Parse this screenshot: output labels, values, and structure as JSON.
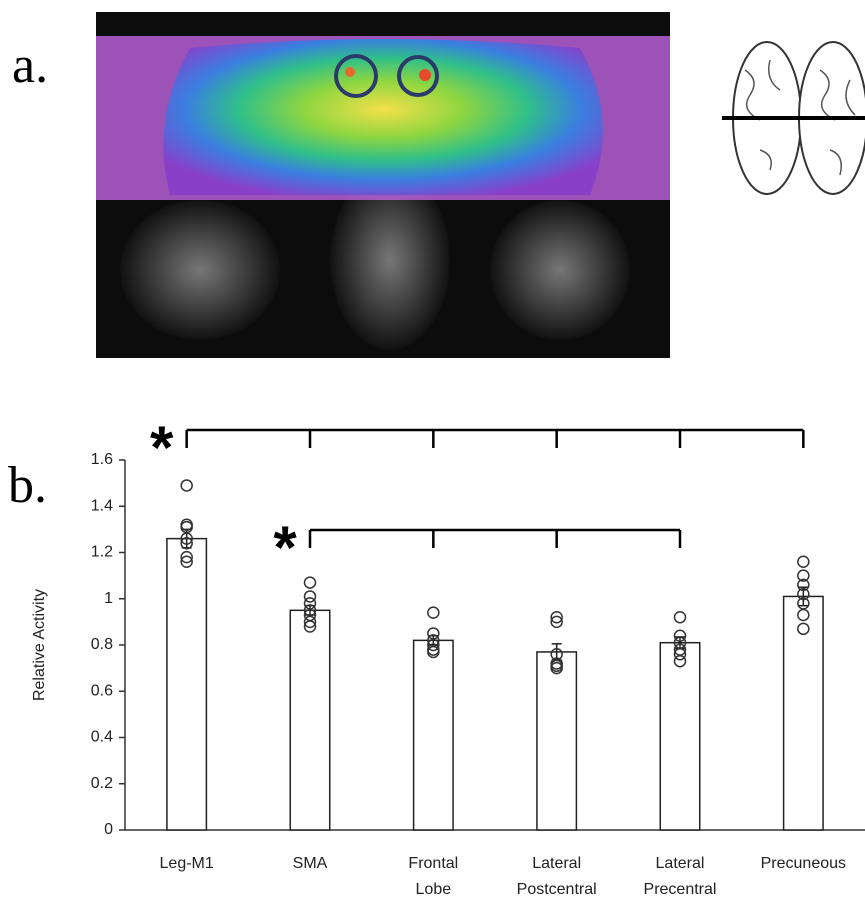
{
  "panel_labels": [
    "a.",
    "b."
  ],
  "chart_data": {
    "type": "bar",
    "y_label": "Relative Activity",
    "categories": [
      [
        "Leg-M1"
      ],
      [
        "SMA"
      ],
      [
        "Frontal",
        "Lobe"
      ],
      [
        "Lateral",
        "Postcentral"
      ],
      [
        "Lateral",
        "Precentral"
      ],
      [
        "Precuneous"
      ]
    ],
    "values": [
      1.26,
      0.95,
      0.82,
      0.77,
      0.81,
      1.01
    ],
    "errors": [
      0.04,
      0.02,
      0.02,
      0.035,
      0.025,
      0.04
    ],
    "points": [
      [
        1.49,
        1.32,
        1.31,
        1.26,
        1.24,
        1.18,
        1.16
      ],
      [
        1.07,
        1.01,
        0.98,
        0.95,
        0.93,
        0.9,
        0.88
      ],
      [
        0.94,
        0.85,
        0.82,
        0.8,
        0.78,
        0.77
      ],
      [
        0.92,
        0.9,
        0.76,
        0.72,
        0.71,
        0.7
      ],
      [
        0.92,
        0.84,
        0.81,
        0.78,
        0.76,
        0.73
      ],
      [
        1.16,
        1.1,
        1.06,
        1.02,
        0.98,
        0.93,
        0.87
      ]
    ],
    "color": "#ffffff",
    "ylim": [
      0,
      1.6
    ],
    "yticks": [
      0,
      0.2,
      0.4,
      0.6,
      0.8,
      1,
      1.2,
      1.4,
      1.6
    ],
    "brackets": [
      {
        "text": "*",
        "from": 0,
        "to": 5
      },
      {
        "text": "*",
        "from": 1,
        "to": 4
      }
    ]
  }
}
